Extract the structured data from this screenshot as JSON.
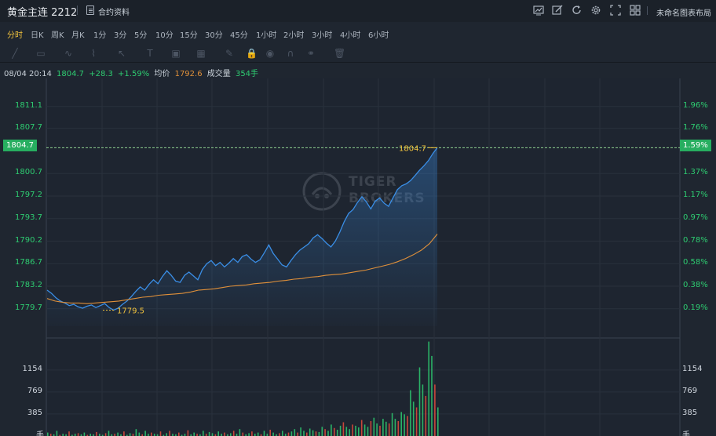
{
  "header": {
    "title": "黄金主连 2212",
    "contract_link": "合约资料",
    "layout_name": "未命名图表布局",
    "tool_icons": [
      "chart-icon",
      "pencil-icon",
      "refresh-icon",
      "settings-icon",
      "fullscreen-icon",
      "grid-icon"
    ]
  },
  "periods": [
    {
      "label": "分时",
      "active": true
    },
    {
      "label": "日K",
      "active": false
    },
    {
      "label": "周K",
      "active": false
    },
    {
      "label": "月K",
      "active": false
    },
    {
      "label": "1分",
      "active": false
    },
    {
      "label": "3分",
      "active": false
    },
    {
      "label": "5分",
      "active": false
    },
    {
      "label": "10分",
      "active": false
    },
    {
      "label": "15分",
      "active": false
    },
    {
      "label": "30分",
      "active": false
    },
    {
      "label": "45分",
      "active": false
    },
    {
      "label": "1小时",
      "active": false
    },
    {
      "label": "2小时",
      "active": false
    },
    {
      "label": "3小时",
      "active": false
    },
    {
      "label": "4小时",
      "active": false
    },
    {
      "label": "6小时",
      "active": false
    }
  ],
  "draw_tools": [
    "line-tool-icon",
    "rect-tool-icon",
    "wave-tool-icon",
    "pattern-tool-icon",
    "cursor-tool-icon",
    "text-tool-icon",
    "image-tool-icon",
    "indicator-tool-icon",
    "brush-tool-icon",
    "lock-icon",
    "eye-icon",
    "magnet-icon",
    "link-icon",
    "trash-icon"
  ],
  "info": {
    "time": "08/04 20:14",
    "price": "1804.7",
    "change": "+28.3",
    "change_pct": "+1.59%",
    "avg_label": "均价",
    "avg_value": "1792.6",
    "volume_label": "成交量",
    "volume_value": "354手"
  },
  "colors": {
    "up": "#2ecc71",
    "price_line": "#3a8ee6",
    "avg_line": "#e0903a",
    "annotation": "#f3c43d",
    "label_price": "#f3c43d",
    "label_avg": "#e0903a"
  },
  "watermark": {
    "line1": "TIGER",
    "line2": "BROKERS"
  },
  "chart_data": {
    "type": "line",
    "title": "",
    "xlabel": "",
    "ylabel": "",
    "ylim": [
      1777.0,
      1813.5
    ],
    "y_ticks_price": [
      "1811.1",
      "1807.7",
      "1804.7",
      "1800.7",
      "1797.2",
      "1793.7",
      "1790.2",
      "1786.7",
      "1783.2",
      "1779.7"
    ],
    "y_ticks_pct": [
      "1.96%",
      "1.76%",
      "1.59%",
      "1.37%",
      "1.17%",
      "0.97%",
      "0.78%",
      "0.58%",
      "0.38%",
      "0.19%"
    ],
    "current_price": "1804.7",
    "current_pct": "1.59%",
    "high_label": "1804.7",
    "low_label": "1779.5",
    "series": [
      {
        "values": [
          1782.6,
          1782.1,
          1781.4,
          1780.9,
          1780.6,
          1780.2,
          1780.4,
          1780.0,
          1779.8,
          1780.1,
          1780.3,
          1779.9,
          1780.2,
          1780.5,
          1779.9,
          1779.5,
          1779.8,
          1780.4,
          1780.9,
          1781.6,
          1782.4,
          1783.1,
          1782.6,
          1783.5,
          1784.2,
          1783.6,
          1784.7,
          1785.6,
          1784.9,
          1784.0,
          1783.8,
          1784.9,
          1785.4,
          1784.8,
          1784.2,
          1785.8,
          1786.7,
          1787.2,
          1786.4,
          1786.9,
          1786.2,
          1786.8,
          1787.5,
          1786.9,
          1787.8,
          1788.1,
          1787.4,
          1786.9,
          1787.3,
          1788.4,
          1789.6,
          1788.3,
          1787.4,
          1786.5,
          1786.2,
          1787.2,
          1788.1,
          1788.8,
          1789.3,
          1789.8,
          1790.7,
          1791.2,
          1790.6,
          1789.9,
          1789.3,
          1790.2,
          1791.6,
          1793.2,
          1794.5,
          1795.1,
          1796.2,
          1797.1,
          1796.3,
          1795.2,
          1796.4,
          1796.9,
          1796.1,
          1795.6,
          1796.9,
          1798.2,
          1798.8,
          1799.1,
          1799.6,
          1800.4,
          1801.2,
          1801.9,
          1802.7,
          1803.8,
          1804.7
        ]
      },
      {
        "values": [
          1781.3,
          1780.9,
          1780.7,
          1780.6,
          1780.6,
          1780.5,
          1780.6,
          1780.7,
          1780.8,
          1780.9,
          1781.1,
          1781.3,
          1781.5,
          1781.6,
          1781.8,
          1781.9,
          1782.0,
          1782.1,
          1782.3,
          1782.6,
          1782.7,
          1782.8,
          1783.0,
          1783.2,
          1783.3,
          1783.4,
          1783.6,
          1783.7,
          1783.8,
          1784.0,
          1784.1,
          1784.3,
          1784.4,
          1784.6,
          1784.7,
          1784.9,
          1785.0,
          1785.1,
          1785.3,
          1785.5,
          1785.7,
          1786.0,
          1786.3,
          1786.6,
          1787.0,
          1787.5,
          1788.1,
          1788.8,
          1789.8,
          1791.3
        ]
      }
    ],
    "volume": {
      "y_ticks": [
        "1154",
        "769",
        "385"
      ],
      "unit": "手",
      "ylim": [
        0,
        1700
      ],
      "values": [
        60,
        40,
        30,
        90,
        20,
        40,
        30,
        80,
        20,
        40,
        50,
        30,
        60,
        20,
        40,
        30,
        70,
        40,
        20,
        50,
        90,
        30,
        40,
        60,
        30,
        80,
        20,
        50,
        40,
        120,
        60,
        30,
        90,
        40,
        60,
        40,
        30,
        80,
        20,
        50,
        90,
        40,
        30,
        60,
        20,
        40,
        100,
        30,
        60,
        40,
        30,
        90,
        40,
        70,
        50,
        30,
        80,
        40,
        60,
        30,
        50,
        90,
        40,
        120,
        60,
        30,
        50,
        80,
        40,
        60,
        30,
        90,
        40,
        110,
        60,
        30,
        50,
        90,
        40,
        60,
        80,
        120,
        60,
        150,
        90,
        60,
        130,
        100,
        80,
        70,
        160,
        120,
        90,
        200,
        140,
        110,
        180,
        240,
        160,
        120,
        200,
        180,
        150,
        280,
        200,
        160,
        260,
        320,
        220,
        180,
        300,
        250,
        220,
        400,
        300,
        260,
        420,
        380,
        350,
        800,
        600,
        500,
        1200,
        900,
        700,
        1650,
        1400,
        900,
        500
      ]
    }
  }
}
